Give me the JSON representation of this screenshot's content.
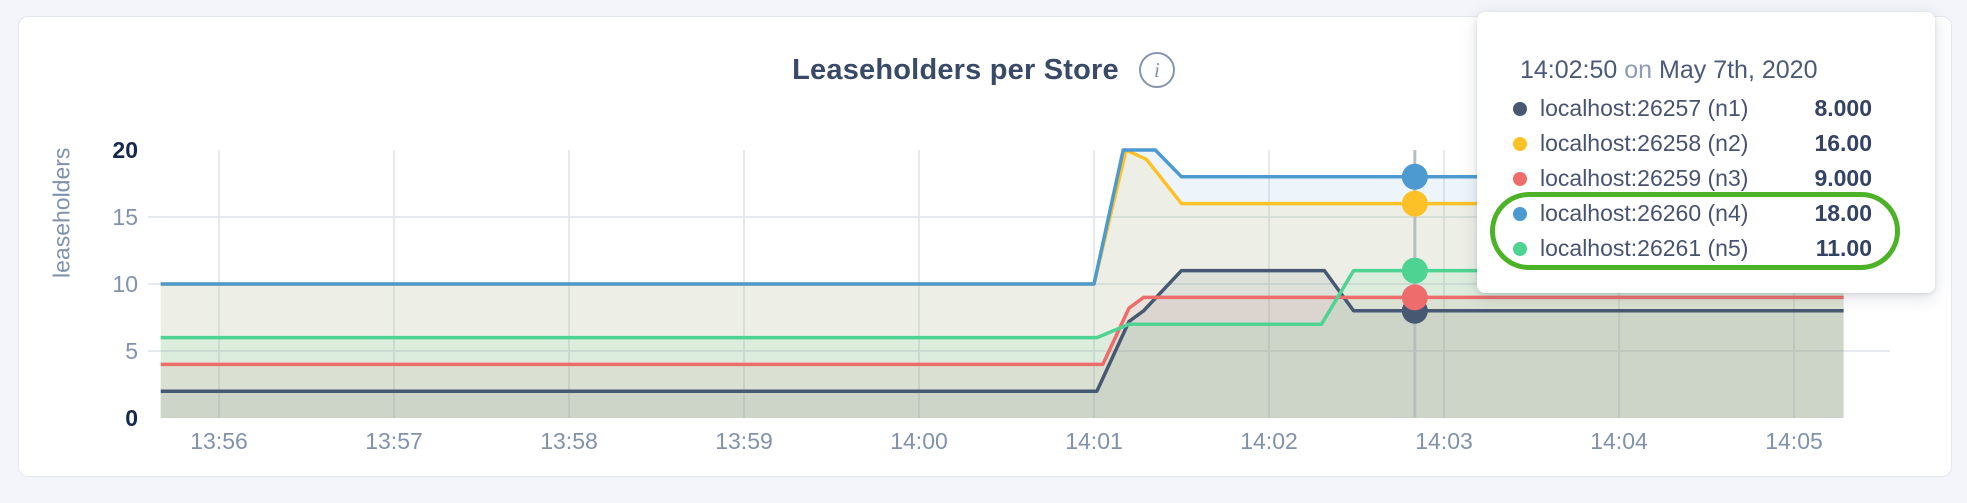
{
  "header": {
    "title": "Leaseholders per Store",
    "info_glyph": "i"
  },
  "chart_data": {
    "type": "area",
    "title": "Leaseholders per Store",
    "ylabel": "leaseholders",
    "ylim": [
      0,
      20
    ],
    "yticks": [
      0,
      5,
      10,
      15,
      20
    ],
    "xticks": [
      "13:56",
      "13:57",
      "13:58",
      "13:59",
      "14:00",
      "14:01",
      "14:02",
      "14:03",
      "14:04",
      "14:05"
    ],
    "x_domain_seconds_from_1356": [
      -20,
      557
    ],
    "grid": true,
    "legend_position": "tooltip-only",
    "series": [
      {
        "name": "localhost:26257 (n1)",
        "color": "#475872",
        "points": [
          [
            -20,
            2
          ],
          [
            301,
            2
          ],
          [
            312,
            7.2
          ],
          [
            317,
            8
          ],
          [
            330,
            11
          ],
          [
            379,
            11
          ],
          [
            389,
            8
          ],
          [
            557,
            8
          ]
        ]
      },
      {
        "name": "localhost:26258 (n2)",
        "color": "#fcc127",
        "points": [
          [
            -20,
            10
          ],
          [
            300,
            10
          ],
          [
            311,
            20
          ],
          [
            318,
            19.3
          ],
          [
            330,
            16
          ],
          [
            557,
            16
          ]
        ]
      },
      {
        "name": "localhost:26259 (n3)",
        "color": "#ee6c6c",
        "points": [
          [
            -20,
            4
          ],
          [
            303,
            4
          ],
          [
            312,
            8.2
          ],
          [
            317,
            9
          ],
          [
            557,
            9
          ]
        ]
      },
      {
        "name": "localhost:26260 (n4)",
        "color": "#4d9ad1",
        "points": [
          [
            -20,
            10
          ],
          [
            300,
            10
          ],
          [
            310,
            20
          ],
          [
            321,
            20
          ],
          [
            330,
            18
          ],
          [
            557,
            18
          ]
        ]
      },
      {
        "name": "localhost:26261 (n5)",
        "color": "#4fd392",
        "points": [
          [
            -20,
            6
          ],
          [
            301,
            6
          ],
          [
            312,
            7
          ],
          [
            378,
            7
          ],
          [
            389,
            11
          ],
          [
            557,
            11
          ]
        ]
      }
    ],
    "hover": {
      "time_label": "14:02:50",
      "time_seconds_from_1356": 410,
      "values": [
        8,
        16,
        9,
        18,
        11
      ]
    }
  },
  "tooltip": {
    "time": "14:02:50",
    "connector": " on ",
    "date": "May 7th, 2020",
    "rows": [
      {
        "label": "localhost:26257 (n1)",
        "value": "8.000",
        "color": "#475872"
      },
      {
        "label": "localhost:26258 (n2)",
        "value": "16.00",
        "color": "#fcc127"
      },
      {
        "label": "localhost:26259 (n3)",
        "value": "9.000",
        "color": "#ee6c6c"
      },
      {
        "label": "localhost:26260 (n4)",
        "value": "18.00",
        "color": "#4d9ad1"
      },
      {
        "label": "localhost:26261 (n5)",
        "value": "11.00",
        "color": "#4fd392"
      }
    ],
    "annotation": {
      "color": "#4cb227",
      "highlighted_rows": [
        3,
        4
      ]
    }
  },
  "colors": {
    "grid": "#e2e6ec",
    "hover_line": "#b9bdc2",
    "axis_muted": "#8193ab",
    "axis_strong": "#16294d"
  }
}
